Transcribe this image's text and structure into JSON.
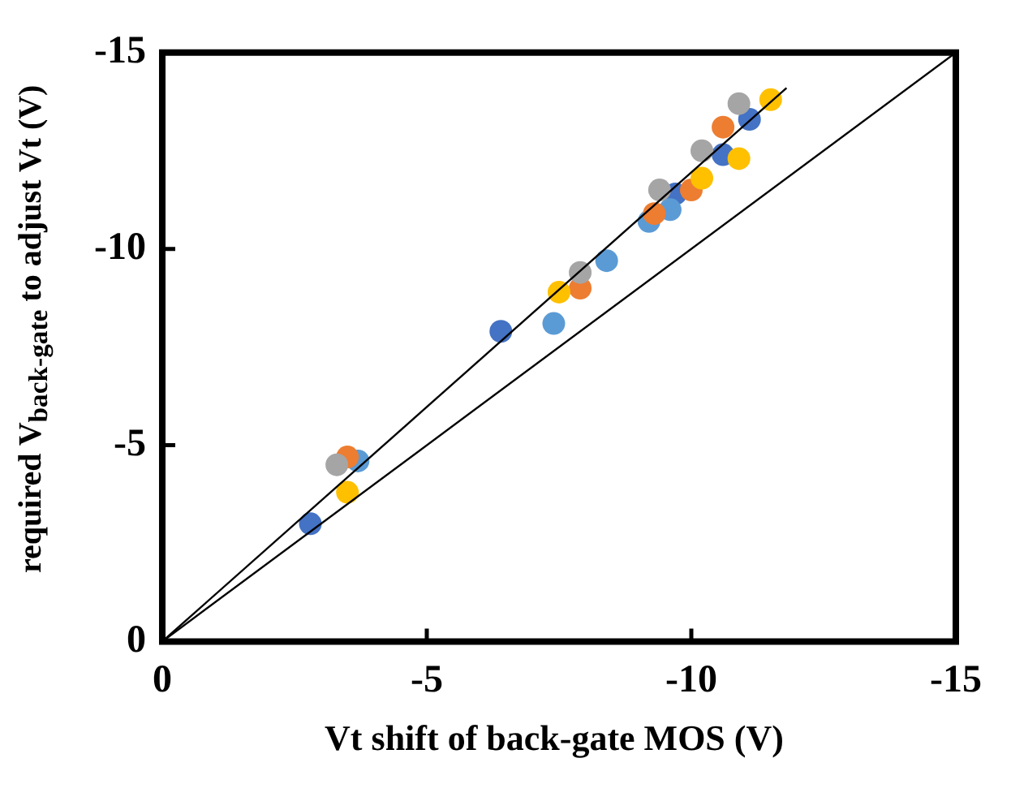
{
  "chart_data": {
    "type": "scatter",
    "xlabel": "Vt shift of back-gate MOS (V)",
    "ylabel": "required V$_{back-gate}$ to adjust Vt (V)",
    "xlim": [
      0,
      -15
    ],
    "ylim": [
      0,
      -15
    ],
    "xticks": [
      0,
      -5,
      -10,
      -15
    ],
    "yticks": [
      0,
      -5,
      -10,
      -15
    ],
    "grid": false,
    "legend": false,
    "marker": "circle",
    "series": [
      {
        "color": "#4472c4",
        "x": [
          -2.8,
          -6.4,
          -9.7,
          -10.6,
          -11.1
        ],
        "values": [
          -3.0,
          -7.9,
          -11.4,
          -12.4,
          -13.3
        ]
      },
      {
        "color": "#5b9bd5",
        "x": [
          -3.7,
          -7.4,
          -8.4,
          -9.2,
          -9.6
        ],
        "values": [
          -4.6,
          -8.1,
          -9.7,
          -10.7,
          -11.0
        ]
      },
      {
        "color": "#ed7d31",
        "x": [
          -3.5,
          -7.9,
          -9.3,
          -10.0,
          -10.6
        ],
        "values": [
          -4.7,
          -9.0,
          -10.9,
          -11.5,
          -13.1
        ]
      },
      {
        "color": "#a5a5a5",
        "x": [
          -3.3,
          -7.9,
          -9.4,
          -10.2,
          -10.9
        ],
        "values": [
          -4.5,
          -9.4,
          -11.5,
          -12.5,
          -13.7
        ]
      },
      {
        "color": "#ffc000",
        "x": [
          -3.5,
          -7.5,
          -10.2,
          -10.9,
          -11.5
        ],
        "values": [
          -3.8,
          -8.9,
          -11.8,
          -12.3,
          -13.8
        ]
      },
      {
        "type": "line",
        "color": "#000000",
        "marker": "none",
        "line_style": "solid",
        "x": [
          0,
          -15
        ],
        "values": [
          0,
          -15
        ]
      },
      {
        "type": "line",
        "color": "#000000",
        "marker": "none",
        "line_style": "solid",
        "x": [
          0,
          -11.8
        ],
        "values": [
          0,
          -14.1
        ]
      }
    ]
  }
}
